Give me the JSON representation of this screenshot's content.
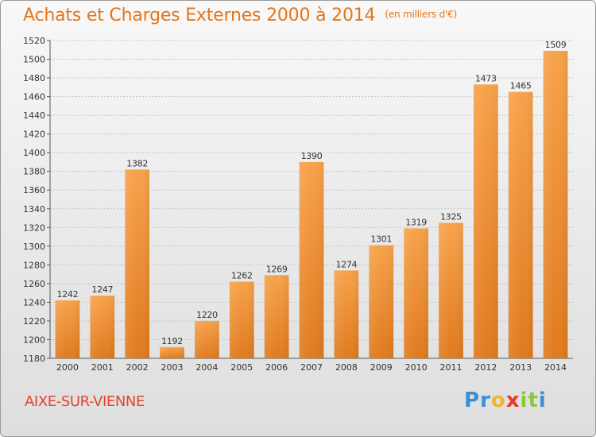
{
  "header": {
    "title": "Achats et Charges Externes 2000 à 2014",
    "subtitle": "(en milliers d'€)"
  },
  "footer": {
    "city": "AIXE-SUR-VIENNE",
    "logo_letters": [
      "P",
      "r",
      "o",
      "x",
      "i",
      "t",
      "i"
    ],
    "logo_colors": [
      "#3b8fd6",
      "#3b8fd6",
      "#f0b62c",
      "#e83a2a",
      "#8cc63f",
      "#8cc63f",
      "#3b8fd6"
    ]
  },
  "colors": {
    "title": "#e4761a",
    "bar_light": "#f7a24a",
    "bar_dark": "#e4761a",
    "city": "#e0442e"
  },
  "chart_data": {
    "type": "bar",
    "title": "Achats et Charges Externes 2000 à 2014",
    "subtitle": "(en milliers d'€)",
    "categories": [
      "2000",
      "2001",
      "2002",
      "2003",
      "2004",
      "2005",
      "2006",
      "2007",
      "2008",
      "2009",
      "2010",
      "2011",
      "2012",
      "2013",
      "2014"
    ],
    "values": [
      1242,
      1247,
      1382,
      1192,
      1220,
      1262,
      1269,
      1390,
      1274,
      1301,
      1319,
      1325,
      1473,
      1465,
      1509
    ],
    "ylim": [
      1180,
      1520
    ],
    "yticks": [
      1180,
      1200,
      1220,
      1240,
      1260,
      1280,
      1300,
      1320,
      1340,
      1360,
      1380,
      1400,
      1420,
      1440,
      1460,
      1480,
      1500,
      1520
    ],
    "grid": true,
    "data_labels": true
  }
}
